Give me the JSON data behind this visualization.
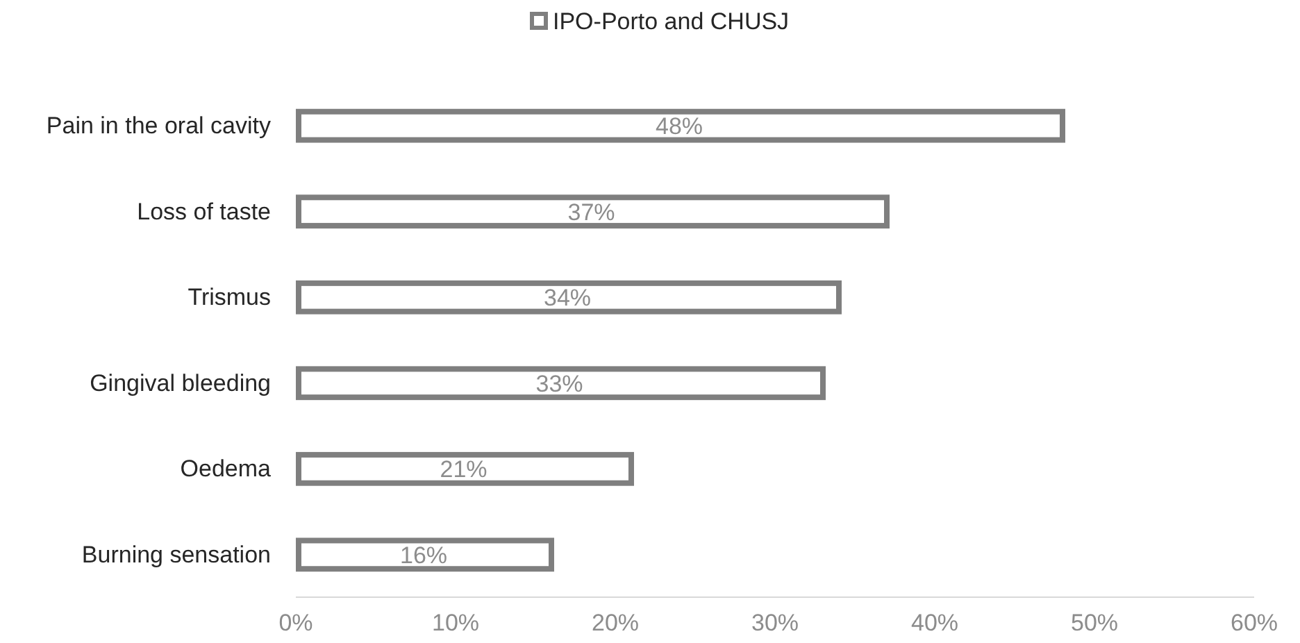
{
  "chart_data": {
    "type": "bar",
    "orientation": "horizontal",
    "categories": [
      "Pain in the oral cavity",
      "Loss of taste",
      "Trismus",
      "Gingival bleeding",
      "Oedema",
      "Burning sensation"
    ],
    "series": [
      {
        "name": "IPO-Porto and CHUSJ",
        "color": "#7f7f7f",
        "values": [
          48,
          37,
          34,
          33,
          21,
          16
        ],
        "value_labels": [
          "48%",
          "37%",
          "34%",
          "33%",
          "21%",
          "16%"
        ]
      }
    ],
    "xlim": [
      0,
      60
    ],
    "xticks": [
      {
        "value": 0,
        "label": "0%"
      },
      {
        "value": 10,
        "label": "10%"
      },
      {
        "value": 20,
        "label": "20%"
      },
      {
        "value": 30,
        "label": "30%"
      },
      {
        "value": 40,
        "label": "40%"
      },
      {
        "value": 50,
        "label": "50%"
      },
      {
        "value": 60,
        "label": "60%"
      }
    ],
    "grid": false,
    "legend": "top"
  }
}
